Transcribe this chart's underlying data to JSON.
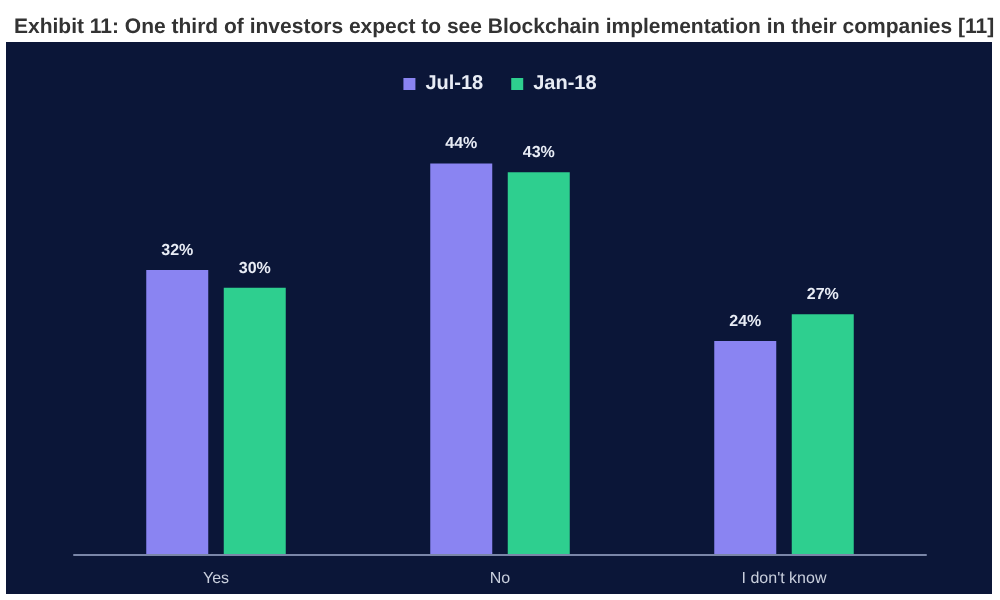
{
  "chart_data": {
    "type": "bar",
    "title": "Exhibit 11: One third of investors expect to see Blockchain implementation in their companies [11]",
    "categories": [
      "Yes",
      "No",
      "I don't know"
    ],
    "series": [
      {
        "name": "Jul-18",
        "color": "#8a84f2",
        "values": [
          32,
          44,
          24
        ],
        "value_labels": [
          "32%",
          "44%",
          "24%"
        ]
      },
      {
        "name": "Jan-18",
        "color": "#2ecf8f",
        "values": [
          30,
          43,
          27
        ],
        "value_labels": [
          "30%",
          "43%",
          "27%"
        ]
      }
    ],
    "legend": "top"
  }
}
